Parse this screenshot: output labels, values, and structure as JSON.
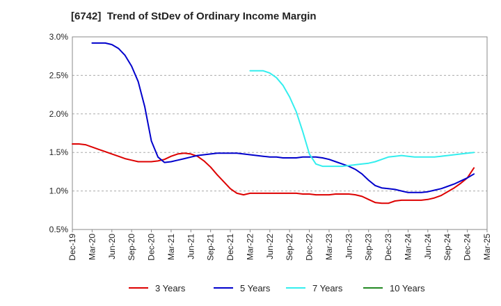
{
  "chart_data": {
    "type": "line",
    "title": "[6742]  Trend of StDev of Ordinary Income Margin",
    "x": [
      "Dec-19",
      "Mar-20",
      "Jun-20",
      "Sep-20",
      "Dec-20",
      "Mar-21",
      "Jun-21",
      "Sep-21",
      "Dec-21",
      "Mar-22",
      "Jun-22",
      "Sep-22",
      "Dec-22",
      "Mar-23",
      "Jun-23",
      "Sep-23",
      "Dec-23",
      "Mar-24",
      "Jun-24",
      "Sep-24",
      "Dec-24",
      "Mar-25"
    ],
    "ylim": [
      0.5,
      3.0
    ],
    "yticks": [
      0.5,
      1.0,
      1.5,
      2.0,
      2.5,
      3.0
    ],
    "ytick_labels": [
      "0.5%",
      "1.0%",
      "1.5%",
      "2.0%",
      "2.5%",
      "3.0%"
    ],
    "grid": "horizontal dashed",
    "legend_position": "bottom",
    "series": [
      {
        "name": "3 Years",
        "color": "#dd0000",
        "points": [
          [
            "Dec-19",
            1.61
          ],
          [
            "Jan-20",
            1.61
          ],
          [
            "Feb-20",
            1.6
          ],
          [
            "Mar-20",
            1.57
          ],
          [
            "Apr-20",
            1.54
          ],
          [
            "May-20",
            1.51
          ],
          [
            "Jun-20",
            1.48
          ],
          [
            "Jul-20",
            1.45
          ],
          [
            "Aug-20",
            1.42
          ],
          [
            "Sep-20",
            1.4
          ],
          [
            "Oct-20",
            1.38
          ],
          [
            "Nov-20",
            1.38
          ],
          [
            "Dec-20",
            1.38
          ],
          [
            "Jan-21",
            1.39
          ],
          [
            "Feb-21",
            1.41
          ],
          [
            "Mar-21",
            1.45
          ],
          [
            "Apr-21",
            1.48
          ],
          [
            "May-21",
            1.49
          ],
          [
            "Jun-21",
            1.48
          ],
          [
            "Jul-21",
            1.45
          ],
          [
            "Aug-21",
            1.39
          ],
          [
            "Sep-21",
            1.31
          ],
          [
            "Oct-21",
            1.21
          ],
          [
            "Nov-21",
            1.12
          ],
          [
            "Dec-21",
            1.03
          ],
          [
            "Jan-22",
            0.97
          ],
          [
            "Feb-22",
            0.95
          ],
          [
            "Mar-22",
            0.97
          ],
          [
            "Apr-22",
            0.97
          ],
          [
            "May-22",
            0.97
          ],
          [
            "Jun-22",
            0.97
          ],
          [
            "Jul-22",
            0.97
          ],
          [
            "Aug-22",
            0.97
          ],
          [
            "Sep-22",
            0.97
          ],
          [
            "Oct-22",
            0.97
          ],
          [
            "Nov-22",
            0.96
          ],
          [
            "Dec-22",
            0.96
          ],
          [
            "Jan-23",
            0.95
          ],
          [
            "Feb-23",
            0.95
          ],
          [
            "Mar-23",
            0.95
          ],
          [
            "Apr-23",
            0.96
          ],
          [
            "May-23",
            0.96
          ],
          [
            "Jun-23",
            0.96
          ],
          [
            "Jul-23",
            0.95
          ],
          [
            "Aug-23",
            0.93
          ],
          [
            "Sep-23",
            0.89
          ],
          [
            "Oct-23",
            0.85
          ],
          [
            "Nov-23",
            0.84
          ],
          [
            "Dec-23",
            0.84
          ],
          [
            "Jan-24",
            0.87
          ],
          [
            "Feb-24",
            0.88
          ],
          [
            "Mar-24",
            0.88
          ],
          [
            "Apr-24",
            0.88
          ],
          [
            "May-24",
            0.88
          ],
          [
            "Jun-24",
            0.89
          ],
          [
            "Jul-24",
            0.91
          ],
          [
            "Aug-24",
            0.94
          ],
          [
            "Sep-24",
            0.99
          ],
          [
            "Oct-24",
            1.04
          ],
          [
            "Nov-24",
            1.1
          ],
          [
            "Dec-24",
            1.17
          ],
          [
            "Jan-25",
            1.3
          ]
        ]
      },
      {
        "name": "5 Years",
        "color": "#0000cc",
        "points": [
          [
            "Mar-20",
            2.92
          ],
          [
            "Apr-20",
            2.92
          ],
          [
            "May-20",
            2.92
          ],
          [
            "Jun-20",
            2.9
          ],
          [
            "Jul-20",
            2.85
          ],
          [
            "Aug-20",
            2.76
          ],
          [
            "Sep-20",
            2.62
          ],
          [
            "Oct-20",
            2.42
          ],
          [
            "Nov-20",
            2.09
          ],
          [
            "Dec-20",
            1.65
          ],
          [
            "Jan-21",
            1.44
          ],
          [
            "Feb-21",
            1.37
          ],
          [
            "Mar-21",
            1.38
          ],
          [
            "Apr-21",
            1.4
          ],
          [
            "May-21",
            1.42
          ],
          [
            "Jun-21",
            1.44
          ],
          [
            "Jul-21",
            1.46
          ],
          [
            "Aug-21",
            1.47
          ],
          [
            "Sep-21",
            1.48
          ],
          [
            "Oct-21",
            1.49
          ],
          [
            "Nov-21",
            1.49
          ],
          [
            "Dec-21",
            1.49
          ],
          [
            "Jan-22",
            1.49
          ],
          [
            "Feb-22",
            1.48
          ],
          [
            "Mar-22",
            1.47
          ],
          [
            "Apr-22",
            1.46
          ],
          [
            "May-22",
            1.45
          ],
          [
            "Jun-22",
            1.44
          ],
          [
            "Jul-22",
            1.44
          ],
          [
            "Aug-22",
            1.43
          ],
          [
            "Sep-22",
            1.43
          ],
          [
            "Oct-22",
            1.43
          ],
          [
            "Nov-22",
            1.44
          ],
          [
            "Dec-22",
            1.44
          ],
          [
            "Jan-23",
            1.44
          ],
          [
            "Feb-23",
            1.43
          ],
          [
            "Mar-23",
            1.41
          ],
          [
            "Apr-23",
            1.38
          ],
          [
            "May-23",
            1.35
          ],
          [
            "Jun-23",
            1.32
          ],
          [
            "Jul-23",
            1.28
          ],
          [
            "Aug-23",
            1.22
          ],
          [
            "Sep-23",
            1.14
          ],
          [
            "Oct-23",
            1.07
          ],
          [
            "Nov-23",
            1.04
          ],
          [
            "Dec-23",
            1.03
          ],
          [
            "Jan-24",
            1.02
          ],
          [
            "Feb-24",
            1.0
          ],
          [
            "Mar-24",
            0.98
          ],
          [
            "Apr-24",
            0.98
          ],
          [
            "May-24",
            0.98
          ],
          [
            "Jun-24",
            0.99
          ],
          [
            "Jul-24",
            1.01
          ],
          [
            "Aug-24",
            1.03
          ],
          [
            "Sep-24",
            1.06
          ],
          [
            "Oct-24",
            1.09
          ],
          [
            "Nov-24",
            1.13
          ],
          [
            "Dec-24",
            1.17
          ],
          [
            "Jan-25",
            1.22
          ]
        ]
      },
      {
        "name": "7 Years",
        "color": "#33eeee",
        "points": [
          [
            "Mar-22",
            2.56
          ],
          [
            "Apr-22",
            2.56
          ],
          [
            "May-22",
            2.56
          ],
          [
            "Jun-22",
            2.53
          ],
          [
            "Jul-22",
            2.47
          ],
          [
            "Aug-22",
            2.37
          ],
          [
            "Sep-22",
            2.22
          ],
          [
            "Oct-22",
            2.03
          ],
          [
            "Nov-22",
            1.77
          ],
          [
            "Dec-22",
            1.48
          ],
          [
            "Jan-23",
            1.35
          ],
          [
            "Feb-23",
            1.32
          ],
          [
            "Mar-23",
            1.32
          ],
          [
            "Apr-23",
            1.32
          ],
          [
            "May-23",
            1.32
          ],
          [
            "Jun-23",
            1.33
          ],
          [
            "Jul-23",
            1.34
          ],
          [
            "Aug-23",
            1.35
          ],
          [
            "Sep-23",
            1.36
          ],
          [
            "Oct-23",
            1.38
          ],
          [
            "Nov-23",
            1.41
          ],
          [
            "Dec-23",
            1.44
          ],
          [
            "Jan-24",
            1.45
          ],
          [
            "Feb-24",
            1.46
          ],
          [
            "Mar-24",
            1.45
          ],
          [
            "Apr-24",
            1.44
          ],
          [
            "May-24",
            1.44
          ],
          [
            "Jun-24",
            1.44
          ],
          [
            "Jul-24",
            1.44
          ],
          [
            "Aug-24",
            1.45
          ],
          [
            "Sep-24",
            1.46
          ],
          [
            "Oct-24",
            1.47
          ],
          [
            "Nov-24",
            1.48
          ],
          [
            "Dec-24",
            1.49
          ],
          [
            "Jan-25",
            1.5
          ]
        ]
      },
      {
        "name": "10 Years",
        "color": "#228822",
        "points": []
      }
    ]
  }
}
